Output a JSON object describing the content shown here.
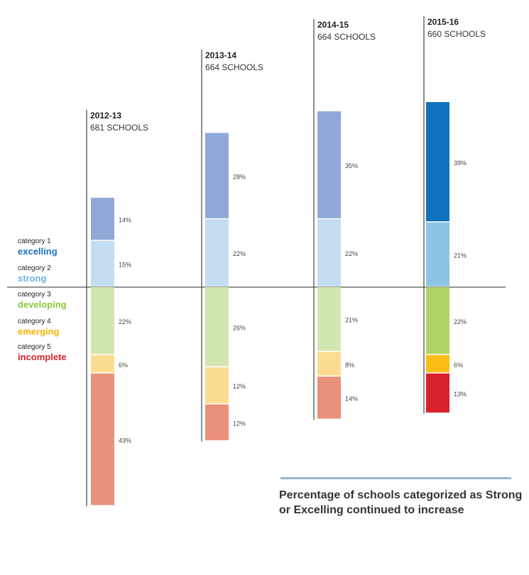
{
  "chart_data": {
    "type": "bar",
    "stacked": true,
    "categories": [
      "2012-13",
      "2013-14",
      "2014-15",
      "2015-16"
    ],
    "school_counts": [
      "681 SCHOOLS",
      "664 SCHOOLS",
      "664 SCHOOLS",
      "660 SCHOOLS"
    ],
    "series": [
      {
        "name": "excelling",
        "values": [
          14,
          28,
          35,
          39
        ]
      },
      {
        "name": "strong",
        "values": [
          15,
          22,
          22,
          21
        ]
      },
      {
        "name": "developing",
        "values": [
          22,
          26,
          21,
          22
        ]
      },
      {
        "name": "emerging",
        "values": [
          6,
          12,
          8,
          6
        ]
      },
      {
        "name": "incomplete",
        "values": [
          43,
          12,
          14,
          13
        ]
      }
    ],
    "value_labels": [
      [
        "14%",
        "15%",
        "22%",
        "6%",
        "43%"
      ],
      [
        "28%",
        "22%",
        "26%",
        "12%",
        "12%"
      ],
      [
        "35%",
        "22%",
        "21%",
        "8%",
        "14%"
      ],
      [
        "39%",
        "21%",
        "22%",
        "6%",
        "13%"
      ]
    ],
    "colors_muted": [
      "#8fa8d8",
      "#c3ddf3",
      "#d2e6b0",
      "#fcdc91",
      "#ea917a"
    ],
    "colors_bold": [
      "#1272bd",
      "#8ec3e8",
      "#afd463",
      "#fbbc16",
      "#d9212b"
    ]
  },
  "legend": [
    {
      "category": "category 1",
      "name": "excelling",
      "color": "#1d6fb8"
    },
    {
      "category": "category 2",
      "name": "strong",
      "color": "#6cb4e4"
    },
    {
      "category": "category 3",
      "name": "developing",
      "color": "#8cc63f"
    },
    {
      "category": "category 4",
      "name": "emerging",
      "color": "#f5b400"
    },
    {
      "category": "category 5",
      "name": "incomplete",
      "color": "#d2232a"
    }
  ],
  "caption": "Percentage of schools categorized as Strong or Excelling continued to increase"
}
